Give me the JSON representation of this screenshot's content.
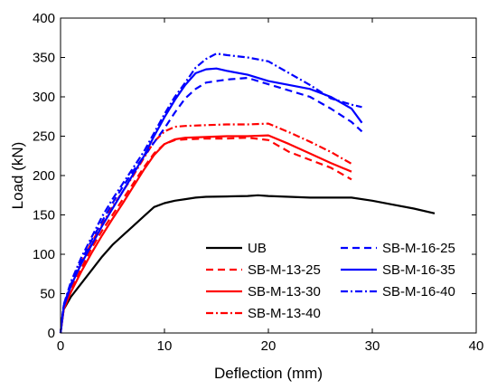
{
  "chart_data": {
    "type": "line",
    "title": "",
    "xlabel": "Deflection (mm)",
    "ylabel": "Load (kN)",
    "xlim": [
      0,
      40
    ],
    "ylim": [
      0,
      400
    ],
    "xticks": [
      0,
      10,
      20,
      30,
      40
    ],
    "yticks": [
      0,
      50,
      100,
      150,
      200,
      250,
      300,
      350,
      400
    ],
    "grid": false,
    "legend_position": "bottom-right",
    "series": [
      {
        "name": "UB",
        "color": "#000000",
        "dash": "solid",
        "x": [
          0,
          0.3,
          1,
          2,
          3,
          4,
          5,
          6,
          7,
          8,
          9,
          10,
          11,
          12,
          13,
          14,
          16,
          18,
          19,
          20,
          22,
          24,
          26,
          28,
          30,
          32,
          34,
          36
        ],
        "y": [
          0,
          30,
          46,
          63,
          80,
          97,
          112,
          124,
          136,
          148,
          160,
          165,
          168,
          170,
          172,
          173,
          173.5,
          174,
          175,
          174,
          173,
          172,
          172,
          172,
          168,
          163,
          158,
          152
        ]
      },
      {
        "name": "SB-M-13-25",
        "color": "#ff0000",
        "dash": "dashed",
        "x": [
          0,
          0.3,
          1,
          2,
          3,
          4,
          5,
          6,
          7,
          8,
          9,
          10,
          11,
          12,
          14,
          16,
          18,
          20,
          22,
          24,
          26,
          28
        ],
        "y": [
          0,
          32,
          55,
          82,
          108,
          130,
          150,
          170,
          190,
          210,
          228,
          240,
          245,
          246,
          247,
          247,
          248,
          245,
          230,
          220,
          210,
          195
        ]
      },
      {
        "name": "SB-M-13-30",
        "color": "#ff0000",
        "dash": "solid",
        "x": [
          0,
          0.3,
          1,
          2,
          3,
          4,
          5,
          6,
          7,
          8,
          9,
          10,
          11,
          12,
          14,
          16,
          18,
          20,
          22,
          24,
          26,
          28
        ],
        "y": [
          0,
          30,
          52,
          78,
          102,
          124,
          145,
          165,
          186,
          207,
          226,
          240,
          246,
          248,
          249,
          250,
          250,
          251,
          240,
          228,
          216,
          205
        ]
      },
      {
        "name": "SB-M-13-40",
        "color": "#ff0000",
        "dash": "dashdot",
        "x": [
          0,
          0.3,
          1,
          2,
          3,
          4,
          5,
          6,
          7,
          8,
          9,
          10,
          11,
          12,
          14,
          16,
          18,
          20,
          22,
          24,
          26,
          28
        ],
        "y": [
          0,
          35,
          60,
          90,
          115,
          138,
          160,
          180,
          200,
          222,
          243,
          256,
          262,
          263,
          264,
          265,
          265,
          266,
          255,
          243,
          230,
          215
        ]
      },
      {
        "name": "SB-M-16-25",
        "color": "#0000ff",
        "dash": "dashed",
        "x": [
          0,
          0.3,
          1,
          2,
          3,
          4,
          5,
          6,
          7,
          8,
          9,
          10,
          11,
          12,
          13,
          14,
          16,
          18,
          20,
          22,
          24,
          26,
          28,
          29
        ],
        "y": [
          0,
          35,
          62,
          92,
          118,
          142,
          165,
          186,
          206,
          224,
          242,
          260,
          280,
          298,
          310,
          318,
          322,
          324,
          316,
          308,
          300,
          285,
          268,
          256
        ]
      },
      {
        "name": "SB-M-16-35",
        "color": "#0000ff",
        "dash": "solid",
        "x": [
          0,
          0.3,
          1,
          2,
          3,
          4,
          5,
          6,
          7,
          8,
          9,
          10,
          11,
          12,
          13,
          14,
          15,
          16,
          18,
          20,
          22,
          24,
          26,
          28,
          29
        ],
        "y": [
          0,
          33,
          60,
          88,
          112,
          136,
          158,
          180,
          202,
          224,
          250,
          274,
          296,
          315,
          330,
          335,
          336,
          333,
          328,
          320,
          315,
          310,
          300,
          285,
          267
        ]
      },
      {
        "name": "SB-M-16-40",
        "color": "#0000ff",
        "dash": "dashdot",
        "x": [
          0,
          0.3,
          1,
          2,
          3,
          4,
          5,
          6,
          7,
          8,
          9,
          10,
          11,
          12,
          13,
          14,
          15,
          16,
          18,
          20,
          22,
          24,
          26,
          28,
          29
        ],
        "y": [
          0,
          36,
          65,
          96,
          122,
          148,
          170,
          190,
          210,
          230,
          254,
          278,
          300,
          318,
          337,
          348,
          355,
          353,
          350,
          345,
          330,
          315,
          298,
          290,
          287
        ]
      }
    ]
  }
}
